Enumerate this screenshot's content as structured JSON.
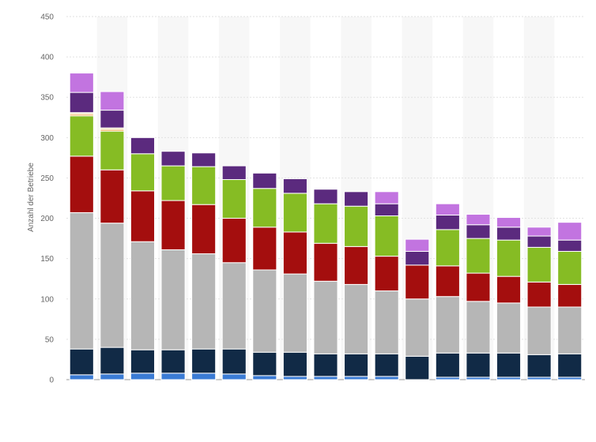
{
  "chart_data": {
    "type": "bar",
    "stacked": true,
    "title": "",
    "xlabel": "",
    "ylabel": "Anzahl der Betriebe",
    "ylim": [
      0,
      450
    ],
    "yticks": [
      0,
      50,
      100,
      150,
      200,
      250,
      300,
      350,
      400,
      450
    ],
    "grid": true,
    "legend": "none",
    "categories": [
      "",
      "",
      "",
      "",
      "",
      "",
      "",
      "",
      "",
      "",
      "",
      "",
      "",
      "",
      "",
      "",
      ""
    ],
    "series": [
      {
        "color": "#3a7bd5",
        "values": [
          6,
          7,
          8,
          8,
          8,
          7,
          5,
          4,
          4,
          4,
          4,
          0,
          3,
          3,
          3,
          3,
          3
        ]
      },
      {
        "color": "#112a46",
        "values": [
          32,
          33,
          29,
          29,
          30,
          31,
          29,
          30,
          28,
          28,
          28,
          29,
          30,
          30,
          30,
          28,
          29
        ]
      },
      {
        "color": "#b6b6b6",
        "values": [
          169,
          154,
          134,
          124,
          118,
          107,
          102,
          97,
          90,
          86,
          78,
          71,
          70,
          64,
          62,
          59,
          58
        ]
      },
      {
        "color": "#a40e0e",
        "values": [
          70,
          66,
          63,
          61,
          61,
          55,
          53,
          52,
          47,
          47,
          43,
          42,
          38,
          35,
          33,
          31,
          28
        ]
      },
      {
        "color": "#86bc24",
        "values": [
          50,
          48,
          46,
          43,
          47,
          48,
          48,
          48,
          49,
          50,
          50,
          0,
          45,
          43,
          45,
          43,
          41
        ]
      },
      {
        "color": "#f2a33c",
        "values": [
          2,
          2,
          0,
          0,
          0,
          0,
          0,
          0,
          0,
          0,
          0,
          0,
          0,
          0,
          0,
          0,
          0
        ]
      },
      {
        "color": "#f0e0b0",
        "values": [
          2,
          2,
          0,
          0,
          0,
          0,
          0,
          0,
          0,
          0,
          0,
          0,
          0,
          0,
          0,
          0,
          0
        ]
      },
      {
        "color": "#5b2a7e",
        "values": [
          25,
          22,
          20,
          18,
          17,
          17,
          19,
          18,
          18,
          18,
          15,
          17,
          18,
          17,
          16,
          14,
          14
        ]
      },
      {
        "color": "#c274e0",
        "values": [
          24,
          23,
          0,
          0,
          0,
          0,
          0,
          0,
          0,
          0,
          15,
          15,
          14,
          13,
          12,
          11,
          22
        ]
      }
    ]
  }
}
